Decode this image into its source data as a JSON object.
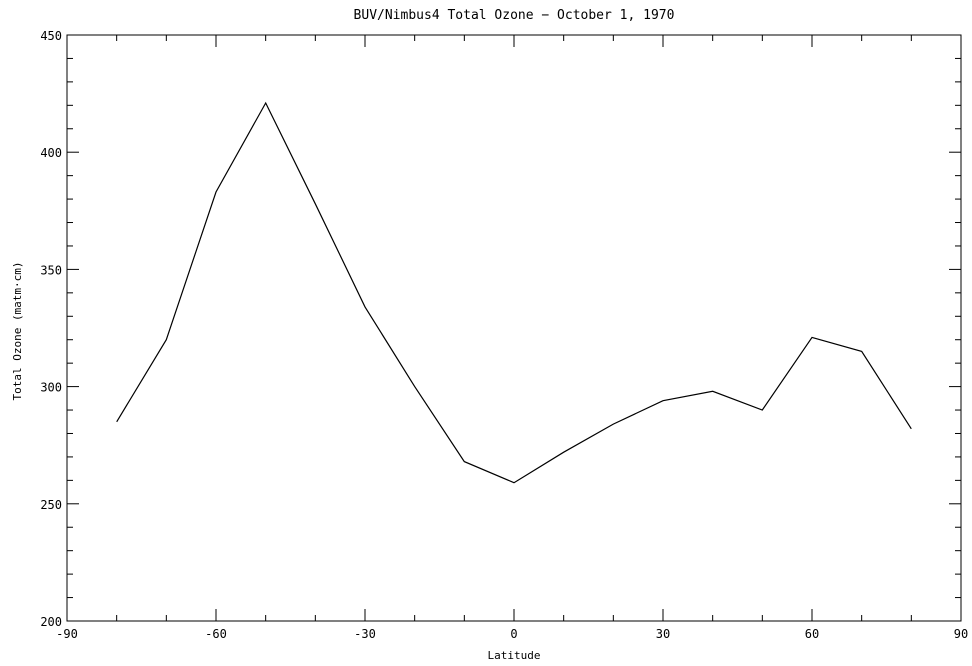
{
  "chart_data": {
    "type": "line",
    "title": "BUV/Nimbus4 Total Ozone − October 1, 1970",
    "xlabel": "Latitude",
    "ylabel": "Total Ozone (matm·cm)",
    "xlim": [
      -90,
      90
    ],
    "ylim": [
      200,
      450
    ],
    "x_ticks": [
      "-90",
      "-60",
      "-30",
      "0",
      "30",
      "60",
      "90"
    ],
    "y_ticks": [
      "200",
      "250",
      "300",
      "350",
      "400",
      "450"
    ],
    "grid": false,
    "series": [
      {
        "x": [
          -80,
          -70,
          -60,
          -50,
          -40,
          -30,
          -20,
          -10,
          0,
          10,
          20,
          30,
          40,
          50,
          60,
          70,
          80
        ],
        "y": [
          285,
          320,
          383,
          421,
          378,
          334,
          300,
          268,
          259,
          272,
          284,
          294,
          298,
          290,
          321,
          315,
          282
        ]
      }
    ],
    "colors": {
      "line": "#000000",
      "axes": "#000000",
      "background": "#ffffff"
    }
  }
}
